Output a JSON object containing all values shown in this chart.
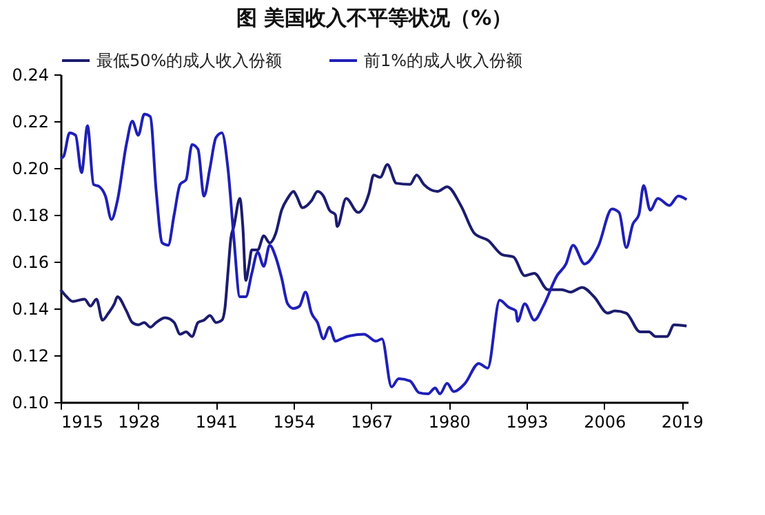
{
  "chart_data": {
    "type": "line",
    "title": "图  美国收入不平等状况（%）",
    "series": [
      {
        "name": "最低50%的成人收入份额",
        "color": "#1c1c6e",
        "x": [
          1915,
          1916,
          1917,
          1919,
          1920,
          1921,
          1922,
          1923,
          1924,
          1924.5,
          1926,
          1927,
          1928,
          1929,
          1930,
          1931,
          1932.5,
          1934,
          1935,
          1936,
          1937,
          1938,
          1939,
          1940,
          1941,
          1942,
          1942.5,
          1943,
          1943.5,
          1944,
          1945,
          1945.5,
          1946,
          1946.5,
          1947,
          1948,
          1949,
          1950,
          1951,
          1952,
          1953,
          1954,
          1954.5,
          1955.5,
          1957,
          1958,
          1959,
          1960,
          1961,
          1961.3,
          1962.8,
          1964.8,
          1966.6,
          1967.4,
          1968.5,
          1969.7,
          1971.2,
          1973.5,
          1974.6,
          1975.8,
          1978.1,
          1979.7,
          1982,
          1984.3,
          1986.6,
          1988.9,
          1990.8,
          1992.7,
          1994.3,
          1996.6,
          1998.9,
          2000.4,
          2002.3,
          2004.3,
          2006.6,
          2007.8,
          2009.7,
          2012,
          2013.5,
          2014.6,
          2016.5,
          2017.7,
          2019.8
        ],
        "values": [
          0.148,
          0.145,
          0.143,
          0.144,
          0.141,
          0.144,
          0.135,
          0.138,
          0.142,
          0.145,
          0.139,
          0.134,
          0.133,
          0.134,
          0.132,
          0.134,
          0.136,
          0.134,
          0.129,
          0.13,
          0.128,
          0.134,
          0.135,
          0.137,
          0.134,
          0.135,
          0.14,
          0.155,
          0.17,
          0.175,
          0.187,
          0.175,
          0.152,
          0.158,
          0.165,
          0.165,
          0.171,
          0.168,
          0.172,
          0.182,
          0.187,
          0.19,
          0.188,
          0.183,
          0.186,
          0.19,
          0.188,
          0.182,
          0.18,
          0.175,
          0.187,
          0.181,
          0.189,
          0.197,
          0.196,
          0.2015,
          0.1935,
          0.193,
          0.197,
          0.193,
          0.19,
          0.192,
          0.184,
          0.172,
          0.169,
          0.163,
          0.162,
          0.154,
          0.155,
          0.148,
          0.148,
          0.147,
          0.149,
          0.145,
          0.138,
          0.139,
          0.138,
          0.13,
          0.13,
          0.128,
          0.128,
          0.133,
          0.1325
        ]
      },
      {
        "name": "前1%的成人收入份额",
        "color": "#1f1fb8",
        "x": [
          1915,
          1915.5,
          1916.5,
          1917.5,
          1918.5,
          1919.5,
          1920.5,
          1921.5,
          1922.5,
          1923.5,
          1924.5,
          1926,
          1927,
          1928,
          1929,
          1930,
          1931,
          1932,
          1933,
          1934,
          1935,
          1936,
          1937,
          1938,
          1939,
          1940,
          1941,
          1942,
          1943,
          1944,
          1945,
          1946,
          1947,
          1948,
          1949,
          1950,
          1951,
          1952,
          1953,
          1954,
          1955,
          1956,
          1957,
          1958,
          1959,
          1960,
          1961,
          1962,
          1963,
          1965.8,
          1967.8,
          1968.8,
          1970.4,
          1971.6,
          1973.5,
          1975,
          1976.5,
          1977.7,
          1978.5,
          1979.7,
          1980.8,
          1982.7,
          1985,
          1986.5,
          1988.5,
          1990,
          1991.2,
          1991.5,
          1992.7,
          1994.3,
          1995.8,
          1998.1,
          1999.6,
          2000.8,
          2002.7,
          2005,
          2007.3,
          2008.5,
          2009.7,
          2010.8,
          2011.8,
          2012.6,
          2013.7,
          2015,
          2016.9,
          2018.4,
          2019.8
        ],
        "values": [
          0.204,
          0.205,
          0.215,
          0.214,
          0.198,
          0.218,
          0.193,
          0.192,
          0.188,
          0.178,
          0.186,
          0.21,
          0.22,
          0.214,
          0.223,
          0.222,
          0.19,
          0.168,
          0.167,
          0.18,
          0.193,
          0.195,
          0.21,
          0.208,
          0.188,
          0.2,
          0.213,
          0.215,
          0.2,
          0.17,
          0.145,
          0.145,
          0.155,
          0.164,
          0.158,
          0.167,
          0.162,
          0.153,
          0.142,
          0.14,
          0.141,
          0.147,
          0.138,
          0.134,
          0.127,
          0.132,
          0.126,
          0.127,
          0.128,
          0.129,
          0.126,
          0.127,
          0.1065,
          0.11,
          0.109,
          0.104,
          0.1035,
          0.106,
          0.1035,
          0.108,
          0.1045,
          0.108,
          0.1165,
          0.1145,
          0.1435,
          0.1405,
          0.139,
          0.1345,
          0.142,
          0.135,
          0.141,
          0.154,
          0.159,
          0.167,
          0.159,
          0.1665,
          0.1825,
          0.181,
          0.166,
          0.176,
          0.18,
          0.1925,
          0.182,
          0.187,
          0.184,
          0.188,
          0.1865
        ]
      }
    ],
    "xlim": [
      1915,
      2020
    ],
    "xticks": [
      1915,
      1928,
      1941,
      1954,
      1967,
      1980,
      1993,
      2006,
      2019
    ],
    "ylim": [
      0.1,
      0.24
    ],
    "yticks": [
      {
        "value": 0.1,
        "label": "0.10"
      },
      {
        "value": 0.12,
        "label": "0.12"
      },
      {
        "value": 0.14,
        "label": "0.14"
      },
      {
        "value": 0.16,
        "label": "0.16"
      },
      {
        "value": 0.18,
        "label": "0.18"
      },
      {
        "value": 0.2,
        "label": "0.20"
      },
      {
        "value": 0.22,
        "label": "0.22"
      },
      {
        "value": 0.24,
        "label": "0.24"
      }
    ],
    "legend": "top",
    "grid": false,
    "marker": "none",
    "line_style": "solid"
  }
}
